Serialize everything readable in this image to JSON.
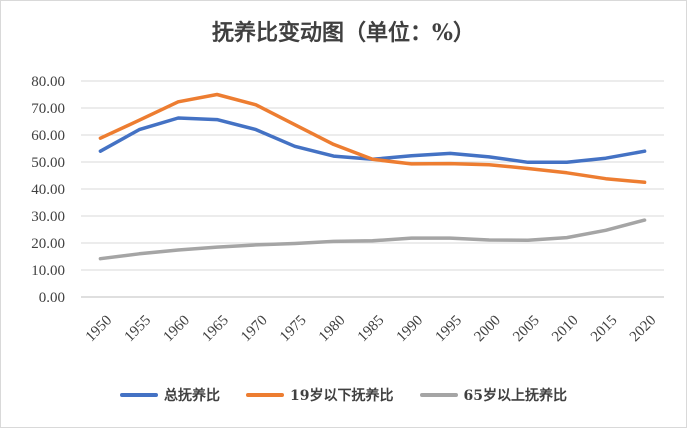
{
  "chart_data": {
    "type": "line",
    "title": "抚养比变动图（单位：%）",
    "xlabel": "",
    "ylabel": "",
    "ylim": [
      0,
      80
    ],
    "yticks": [
      "0.00",
      "10.00",
      "20.00",
      "30.00",
      "40.00",
      "50.00",
      "60.00",
      "70.00",
      "80.00"
    ],
    "categories": [
      "1950",
      "1955",
      "1960",
      "1965",
      "1970",
      "1975",
      "1980",
      "1985",
      "1990",
      "1995",
      "2000",
      "2005",
      "2010",
      "2015",
      "2020"
    ],
    "grid": true,
    "legend": "bottom",
    "series": [
      {
        "name": "总抚养比",
        "color": "#4472c4",
        "values": [
          54.0,
          62.0,
          66.3,
          65.7,
          62.0,
          55.8,
          52.2,
          51.0,
          52.3,
          53.2,
          51.9,
          49.9,
          49.9,
          51.4,
          54.0
        ]
      },
      {
        "name": "19岁以下抚养比",
        "color": "#ed7d31",
        "values": [
          58.8,
          65.5,
          72.3,
          75.0,
          71.2,
          63.8,
          56.5,
          51.0,
          49.3,
          49.4,
          49.0,
          47.6,
          46.0,
          43.8,
          42.5
        ]
      },
      {
        "name": "65岁以上抚养比",
        "color": "#a5a5a5",
        "values": [
          14.2,
          16.0,
          17.4,
          18.5,
          19.3,
          19.8,
          20.6,
          20.8,
          21.8,
          21.8,
          21.1,
          21.0,
          22.0,
          24.7,
          28.5
        ]
      }
    ]
  }
}
